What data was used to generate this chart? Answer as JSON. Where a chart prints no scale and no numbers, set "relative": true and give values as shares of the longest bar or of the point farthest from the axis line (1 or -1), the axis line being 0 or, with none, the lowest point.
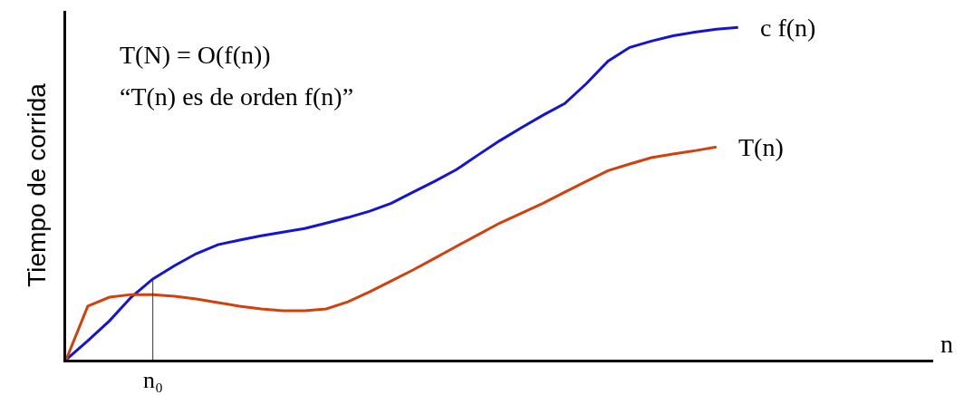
{
  "chart_data": {
    "type": "line",
    "relative": true,
    "xlabel": "n",
    "ylabel": "Tiempo de corrida",
    "legend": false,
    "marker": "none",
    "line_style": "solid",
    "categories": [
      null,
      null,
      null,
      null,
      null,
      null,
      null,
      null,
      null,
      null,
      null,
      null,
      null,
      null,
      null,
      null,
      null,
      null,
      null,
      null,
      null,
      null,
      null,
      null,
      null,
      null,
      null,
      null,
      null,
      null,
      null,
      null,
      null,
      null,
      null,
      null,
      null,
      null,
      null,
      null,
      null
    ],
    "series": [
      {
        "name": "c f(n)",
        "color": "#1414d2",
        "values": [
          0,
          0.057,
          0.117,
          0.188,
          0.243,
          0.283,
          0.319,
          0.346,
          0.36,
          0.373,
          0.384,
          0.395,
          0.411,
          0.428,
          0.447,
          0.471,
          0.504,
          0.537,
          0.572,
          0.616,
          0.659,
          0.698,
          0.736,
          0.771,
          0.831,
          0.899,
          0.94,
          0.959,
          0.975,
          0.986,
          0.995,
          1,
          null,
          null,
          null,
          null,
          null,
          null,
          null,
          null,
          null
        ]
      },
      {
        "name": "T(n)",
        "color": "#d2400e",
        "values": [
          0,
          0.161,
          0.188,
          0.196,
          0.196,
          0.191,
          0.183,
          0.172,
          0.161,
          0.153,
          0.147,
          0.147,
          0.153,
          0.174,
          0.204,
          0.237,
          0.27,
          0.305,
          0.341,
          0.376,
          0.411,
          0.441,
          0.471,
          0.504,
          0.537,
          0.569,
          0.589,
          0.608,
          0.619,
          0.629,
          0.64,
          null,
          null,
          null,
          null,
          null,
          null,
          null,
          null,
          null,
          null
        ]
      }
    ],
    "annotations": [
      "T(N) = O(f(n))",
      "“T(n) es de orden f(n)”",
      {
        "text": "n₀"
      }
    ]
  }
}
